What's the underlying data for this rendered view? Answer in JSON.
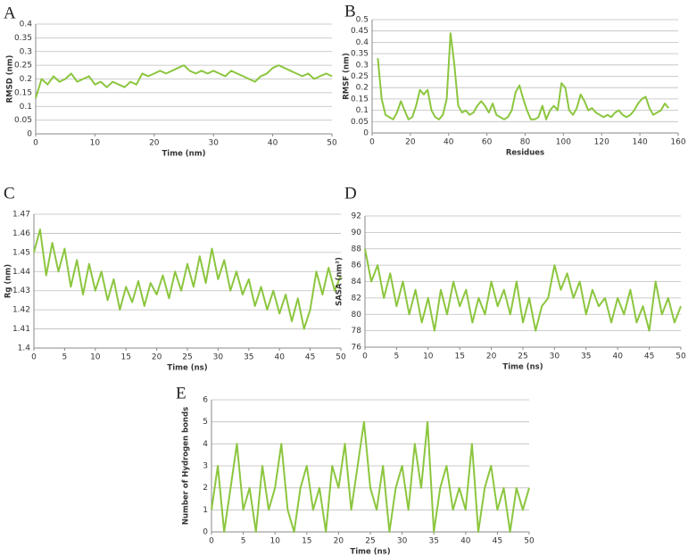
{
  "chart_data": [
    {
      "type": "line",
      "label": "A",
      "xlabel": "Time (nm)",
      "ylabel": "RMSD (nm)",
      "color": "#8cc63f",
      "grid": true,
      "xlim": [
        0,
        50
      ],
      "xticks": [
        0,
        10,
        20,
        30,
        40,
        50
      ],
      "ylim": [
        0,
        0.4
      ],
      "yticks": [
        0,
        0.05,
        0.1,
        0.15,
        0.2,
        0.25,
        0.3,
        0.35,
        0.4
      ],
      "x": [
        0,
        1,
        2,
        3,
        4,
        5,
        6,
        7,
        8,
        9,
        10,
        11,
        12,
        13,
        14,
        15,
        16,
        17,
        18,
        19,
        20,
        21,
        22,
        23,
        24,
        25,
        26,
        27,
        28,
        29,
        30,
        31,
        32,
        33,
        34,
        35,
        36,
        37,
        38,
        39,
        40,
        41,
        42,
        43,
        44,
        45,
        46,
        47,
        48,
        49,
        50
      ],
      "values": [
        0.13,
        0.2,
        0.18,
        0.21,
        0.19,
        0.2,
        0.22,
        0.19,
        0.2,
        0.21,
        0.18,
        0.19,
        0.17,
        0.19,
        0.18,
        0.17,
        0.19,
        0.18,
        0.22,
        0.21,
        0.22,
        0.23,
        0.22,
        0.23,
        0.24,
        0.25,
        0.23,
        0.22,
        0.23,
        0.22,
        0.23,
        0.22,
        0.21,
        0.23,
        0.22,
        0.21,
        0.2,
        0.19,
        0.21,
        0.22,
        0.24,
        0.25,
        0.24,
        0.23,
        0.22,
        0.21,
        0.22,
        0.2,
        0.21,
        0.22,
        0.21
      ]
    },
    {
      "type": "line",
      "label": "B",
      "xlabel": "Residues",
      "ylabel": "RMSF (nm)",
      "color": "#8cc63f",
      "grid": true,
      "xlim": [
        0,
        160
      ],
      "xticks": [
        0,
        20,
        40,
        60,
        80,
        100,
        120,
        140,
        160
      ],
      "ylim": [
        0,
        0.5
      ],
      "yticks": [
        0,
        0.05,
        0.1,
        0.15,
        0.2,
        0.25,
        0.3,
        0.35,
        0.4,
        0.45,
        0.5
      ],
      "x": [
        3,
        5,
        7,
        9,
        11,
        13,
        15,
        17,
        19,
        21,
        23,
        25,
        27,
        29,
        31,
        33,
        35,
        37,
        39,
        41,
        43,
        45,
        47,
        49,
        51,
        53,
        55,
        57,
        59,
        61,
        63,
        65,
        67,
        69,
        71,
        73,
        75,
        77,
        79,
        81,
        83,
        85,
        87,
        89,
        91,
        93,
        95,
        97,
        99,
        101,
        103,
        105,
        107,
        109,
        111,
        113,
        115,
        117,
        119,
        121,
        123,
        125,
        127,
        129,
        131,
        133,
        135,
        137,
        139,
        141,
        143,
        145,
        147,
        149,
        151,
        153,
        155
      ],
      "values": [
        0.33,
        0.15,
        0.08,
        0.07,
        0.06,
        0.09,
        0.14,
        0.1,
        0.06,
        0.07,
        0.12,
        0.19,
        0.17,
        0.19,
        0.1,
        0.07,
        0.06,
        0.08,
        0.15,
        0.44,
        0.3,
        0.12,
        0.09,
        0.1,
        0.08,
        0.09,
        0.12,
        0.14,
        0.12,
        0.09,
        0.13,
        0.08,
        0.07,
        0.06,
        0.07,
        0.1,
        0.18,
        0.21,
        0.15,
        0.1,
        0.06,
        0.06,
        0.07,
        0.12,
        0.06,
        0.1,
        0.12,
        0.1,
        0.22,
        0.2,
        0.1,
        0.08,
        0.11,
        0.17,
        0.14,
        0.1,
        0.11,
        0.09,
        0.08,
        0.07,
        0.08,
        0.07,
        0.09,
        0.1,
        0.08,
        0.07,
        0.08,
        0.1,
        0.13,
        0.15,
        0.16,
        0.11,
        0.08,
        0.09,
        0.1,
        0.13,
        0.11
      ]
    },
    {
      "type": "line",
      "label": "C",
      "xlabel": "Time (ns)",
      "ylabel": "Rg (nm)",
      "color": "#8cc63f",
      "grid": true,
      "xlim": [
        0,
        50
      ],
      "xticks": [
        0,
        5,
        10,
        15,
        20,
        25,
        30,
        35,
        40,
        45,
        50
      ],
      "ylim": [
        1.4,
        1.47
      ],
      "yticks": [
        1.4,
        1.41,
        1.42,
        1.43,
        1.44,
        1.45,
        1.46,
        1.47
      ],
      "x": [
        0,
        1,
        2,
        3,
        4,
        5,
        6,
        7,
        8,
        9,
        10,
        11,
        12,
        13,
        14,
        15,
        16,
        17,
        18,
        19,
        20,
        21,
        22,
        23,
        24,
        25,
        26,
        27,
        28,
        29,
        30,
        31,
        32,
        33,
        34,
        35,
        36,
        37,
        38,
        39,
        40,
        41,
        42,
        43,
        44,
        45,
        46,
        47,
        48,
        49,
        50
      ],
      "values": [
        1.45,
        1.462,
        1.438,
        1.455,
        1.44,
        1.452,
        1.432,
        1.446,
        1.428,
        1.444,
        1.43,
        1.44,
        1.425,
        1.436,
        1.42,
        1.432,
        1.424,
        1.435,
        1.422,
        1.434,
        1.428,
        1.438,
        1.426,
        1.44,
        1.43,
        1.444,
        1.432,
        1.448,
        1.434,
        1.452,
        1.436,
        1.446,
        1.43,
        1.44,
        1.428,
        1.436,
        1.422,
        1.432,
        1.42,
        1.43,
        1.418,
        1.428,
        1.414,
        1.426,
        1.41,
        1.42,
        1.44,
        1.428,
        1.442,
        1.43,
        1.438
      ]
    },
    {
      "type": "line",
      "label": "D",
      "xlabel": "Time (ns)",
      "ylabel": "SASA (nm²)",
      "color": "#8cc63f",
      "grid": true,
      "xlim": [
        0,
        50
      ],
      "xticks": [
        0,
        5,
        10,
        15,
        20,
        25,
        30,
        35,
        40,
        45,
        50
      ],
      "ylim": [
        76,
        92
      ],
      "yticks": [
        76,
        78,
        80,
        82,
        84,
        86,
        88,
        90,
        92
      ],
      "x": [
        0,
        1,
        2,
        3,
        4,
        5,
        6,
        7,
        8,
        9,
        10,
        11,
        12,
        13,
        14,
        15,
        16,
        17,
        18,
        19,
        20,
        21,
        22,
        23,
        24,
        25,
        26,
        27,
        28,
        29,
        30,
        31,
        32,
        33,
        34,
        35,
        36,
        37,
        38,
        39,
        40,
        41,
        42,
        43,
        44,
        45,
        46,
        47,
        48,
        49,
        50
      ],
      "values": [
        88,
        84,
        86,
        82,
        85,
        81,
        84,
        80,
        83,
        79,
        82,
        78,
        83,
        80,
        84,
        81,
        83,
        79,
        82,
        80,
        84,
        81,
        83,
        80,
        84,
        79,
        82,
        78,
        81,
        82,
        86,
        83,
        85,
        82,
        84,
        80,
        83,
        81,
        82,
        79,
        82,
        80,
        83,
        79,
        81,
        78,
        84,
        80,
        82,
        79,
        81
      ]
    },
    {
      "type": "line",
      "label": "E",
      "xlabel": "Time (ns)",
      "ylabel": "Number of Hydrogen bonds",
      "color": "#8cc63f",
      "grid": true,
      "xlim": [
        0,
        50
      ],
      "xticks": [
        0,
        5,
        10,
        15,
        20,
        25,
        30,
        35,
        40,
        45,
        50
      ],
      "ylim": [
        0,
        6
      ],
      "yticks": [
        0,
        1,
        2,
        3,
        4,
        5,
        6
      ],
      "x": [
        0,
        1,
        2,
        3,
        4,
        5,
        6,
        7,
        8,
        9,
        10,
        11,
        12,
        13,
        14,
        15,
        16,
        17,
        18,
        19,
        20,
        21,
        22,
        23,
        24,
        25,
        26,
        27,
        28,
        29,
        30,
        31,
        32,
        33,
        34,
        35,
        36,
        37,
        38,
        39,
        40,
        41,
        42,
        43,
        44,
        45,
        46,
        47,
        48,
        49,
        50
      ],
      "values": [
        1,
        3,
        0,
        2,
        4,
        1,
        2,
        0,
        3,
        1,
        2,
        4,
        1,
        0,
        2,
        3,
        1,
        2,
        0,
        3,
        2,
        4,
        1,
        3,
        5,
        2,
        1,
        3,
        0,
        2,
        3,
        1,
        4,
        2,
        5,
        0,
        2,
        3,
        1,
        2,
        1,
        4,
        0,
        2,
        3,
        1,
        2,
        0,
        2,
        1,
        2
      ]
    }
  ]
}
